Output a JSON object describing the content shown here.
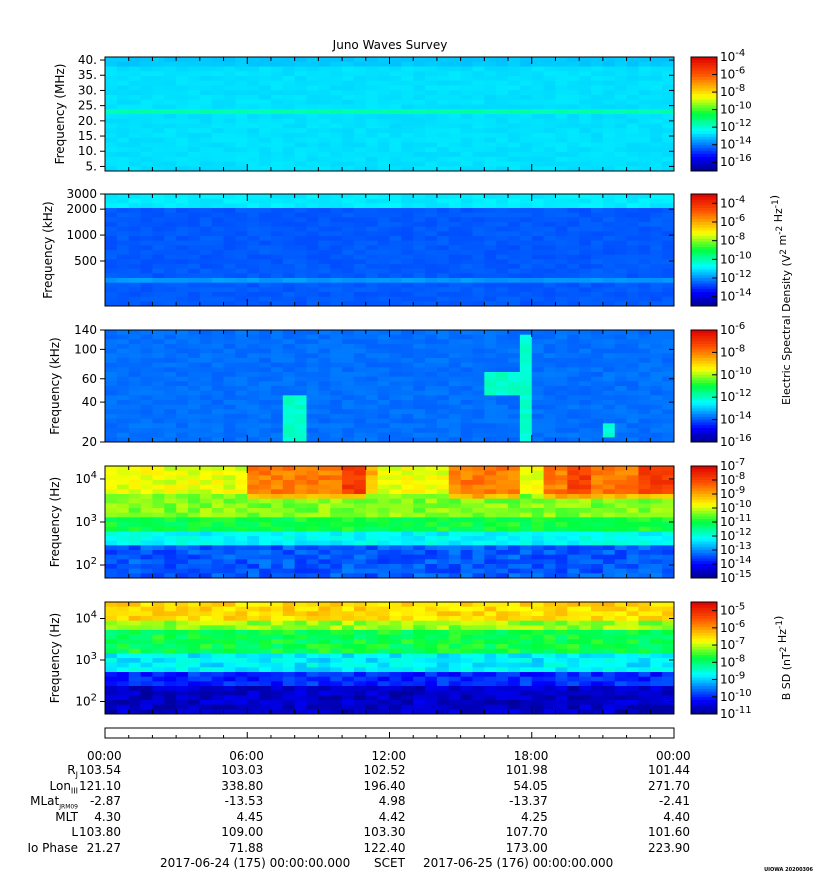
{
  "chart_data": [
    {
      "type": "heatmap",
      "panel": "hf-mhz",
      "title": "Juno Waves Survey",
      "ylabel": "Frequency (MHz)",
      "ylim": [
        3.5,
        41
      ],
      "yscale": "linear",
      "yticks": [
        "40.",
        "35.",
        "30.",
        "25.",
        "20.",
        "15.",
        "10.",
        "5."
      ],
      "ytick_values": [
        40,
        35,
        30,
        25,
        20,
        15,
        10,
        5
      ],
      "colorbar_ticks": [
        "10^-4",
        "10^-6",
        "10^-8",
        "10^-10",
        "10^-12",
        "10^-14",
        "10^-16"
      ],
      "colorbar_exponents": [
        -4,
        -6,
        -8,
        -10,
        -12,
        -14,
        -16
      ],
      "cmin": -17,
      "cmax": -4
    },
    {
      "type": "heatmap",
      "panel": "hf-khz",
      "ylabel": "Frequency (kHz)",
      "ylim": [
        150,
        3000
      ],
      "yscale": "log",
      "yticks": [
        "3000",
        "2000",
        "1000",
        "500"
      ],
      "ytick_values": [
        3000,
        2000,
        1000,
        500
      ],
      "colorbar_ticks": [
        "10^-4",
        "10^-6",
        "10^-8",
        "10^-10",
        "10^-12",
        "10^-14"
      ],
      "colorbar_exponents": [
        -4,
        -6,
        -8,
        -10,
        -12,
        -14
      ],
      "cmin": -15,
      "cmax": -3,
      "colorbar_label": "Electric Spectral Density (V^2 m^-2 Hz^-1)"
    },
    {
      "type": "heatmap",
      "panel": "lf-khz",
      "ylabel": "Frequency (kHz)",
      "ylim": [
        20,
        140
      ],
      "yscale": "log",
      "yticks": [
        "140",
        "100",
        "60",
        "40",
        "20"
      ],
      "ytick_values": [
        140,
        100,
        60,
        40,
        20
      ],
      "colorbar_ticks": [
        "10^-6",
        "10^-8",
        "10^-10",
        "10^-12",
        "10^-14",
        "10^-16"
      ],
      "colorbar_exponents": [
        -6,
        -8,
        -10,
        -12,
        -14,
        -16
      ],
      "cmin": -16,
      "cmax": -6
    },
    {
      "type": "heatmap",
      "panel": "lf-hz-e",
      "ylabel": "Frequency (Hz)",
      "ylim": [
        50,
        20000
      ],
      "yscale": "log",
      "yticks": [
        "10^4",
        "10^3",
        "10^2"
      ],
      "ytick_values": [
        10000,
        1000,
        100
      ],
      "colorbar_ticks": [
        "10^-7",
        "10^-8",
        "10^-9",
        "10^-10",
        "10^-11",
        "10^-12",
        "10^-13",
        "10^-14",
        "10^-15"
      ],
      "colorbar_exponents": [
        -7,
        -8,
        -9,
        -10,
        -11,
        -12,
        -13,
        -14,
        -15
      ],
      "cmin": -15,
      "cmax": -7
    },
    {
      "type": "heatmap",
      "panel": "lf-hz-b",
      "ylabel": "Frequency (Hz)",
      "ylim": [
        50,
        25000
      ],
      "yscale": "log",
      "yticks": [
        "10^4",
        "10^3",
        "10^2"
      ],
      "ytick_values": [
        10000,
        1000,
        100
      ],
      "colorbar_ticks": [
        "10^-5",
        "10^-6",
        "10^-7",
        "10^-8",
        "10^-9",
        "10^-10",
        "10^-11"
      ],
      "colorbar_exponents": [
        -5,
        -6,
        -7,
        -8,
        -9,
        -10,
        -11
      ],
      "cmin": -11,
      "cmax": -4.5,
      "colorbar_label": "B SD (nT^2 Hz^-1)"
    }
  ],
  "xaxis": {
    "ticks": [
      "00:00",
      "06:00",
      "12:00",
      "18:00",
      "00:00"
    ],
    "tick_hours": [
      0,
      6,
      12,
      18,
      24
    ],
    "range_hours": [
      0,
      24
    ]
  },
  "ephemeris": [
    {
      "label": "R_J",
      "values": [
        "103.54",
        "103.03",
        "102.52",
        "101.98",
        "101.44"
      ]
    },
    {
      "label": "Lon_III",
      "values": [
        "121.10",
        "338.80",
        "196.40",
        "54.05",
        "271.70"
      ]
    },
    {
      "label": "MLat_JRM09",
      "values": [
        "-2.87",
        "-13.53",
        "4.98",
        "-13.37",
        "-2.41"
      ]
    },
    {
      "label": "MLT",
      "values": [
        "4.30",
        "4.45",
        "4.42",
        "4.25",
        "4.40"
      ]
    },
    {
      "label": "L",
      "values": [
        "103.80",
        "109.00",
        "103.30",
        "107.70",
        "101.60"
      ]
    },
    {
      "label": "Io Phase",
      "values": [
        "21.27",
        "71.88",
        "122.40",
        "173.00",
        "223.90"
      ]
    }
  ],
  "footer": {
    "start": "2017-06-24 (175) 00:00:00.000",
    "scet": "SCET",
    "end": "2017-06-25 (176) 00:00:00.000",
    "stamp": "UIOWA 20200306"
  }
}
